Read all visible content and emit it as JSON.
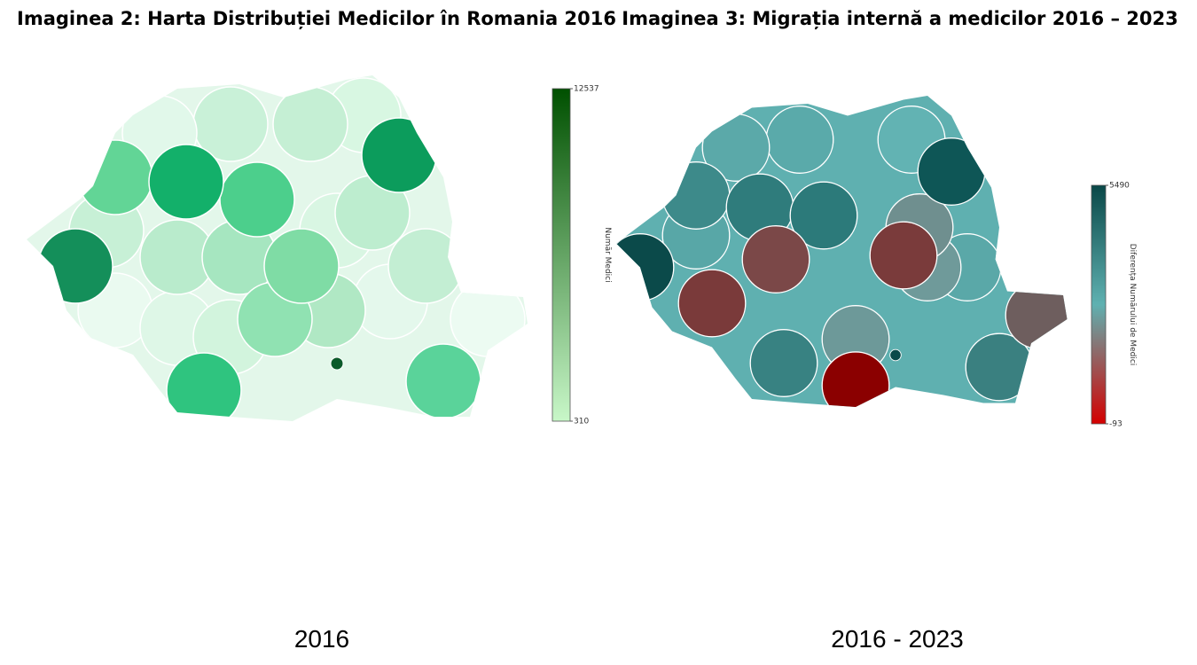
{
  "panels": [
    {
      "title": "Imaginea 2: Harta Distribuției Medicilor în Romania 2016",
      "caption": "2016",
      "colorbar": {
        "label": "Număr Medici",
        "lim": [
          310,
          12537
        ],
        "ticks": [
          310,
          12537
        ],
        "colors": [
          "#c8f7c8",
          "#005000"
        ]
      }
    },
    {
      "title": "Imaginea 3: Migrația internă a medicilor 2016 – 2023",
      "caption": "2016 - 2023",
      "colorbar": {
        "label": "Diferența Numărului de Medici",
        "lim": [
          -93,
          5490
        ],
        "ticks": [
          -93,
          5490
        ],
        "colors": [
          "#d40000",
          "#5fb1b1",
          "#0a4848"
        ]
      }
    }
  ]
}
